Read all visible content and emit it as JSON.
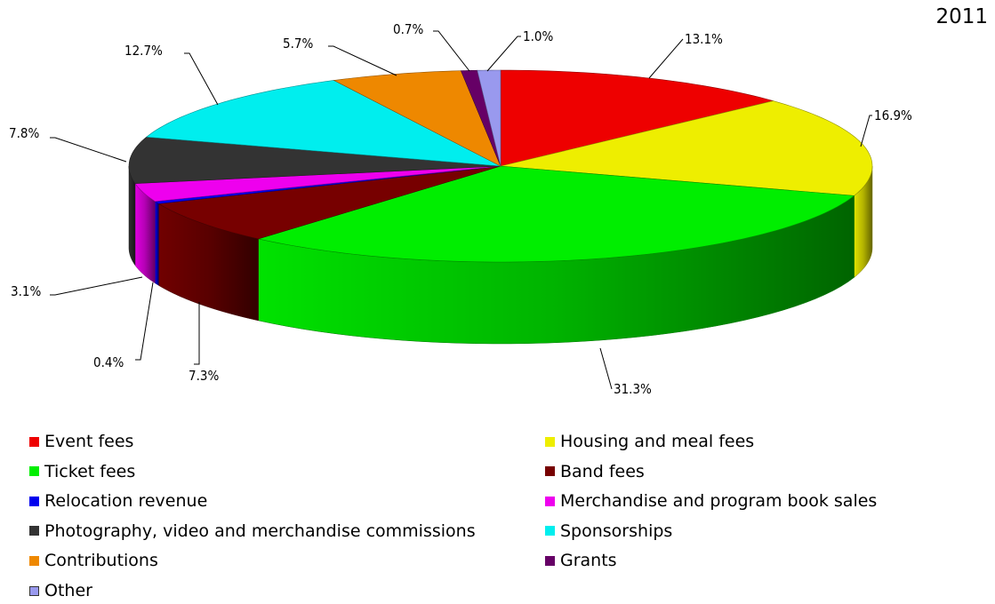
{
  "chart_data": {
    "type": "pie",
    "title": "2011",
    "slices": [
      {
        "name": "Event fees",
        "value": 13.1,
        "label": "13.1%",
        "color": "#ee0000"
      },
      {
        "name": "Housing and meal fees",
        "value": 16.9,
        "label": "16.9%",
        "color": "#eeee00"
      },
      {
        "name": "Ticket fees",
        "value": 31.3,
        "label": "31.3%",
        "color": "#00ee00"
      },
      {
        "name": "Band fees",
        "value": 7.3,
        "label": "7.3%",
        "color": "#770000"
      },
      {
        "name": "Relocation revenue",
        "value": 0.4,
        "label": "0.4%",
        "color": "#0000ee"
      },
      {
        "name": "Merchandise and program book sales",
        "value": 3.1,
        "label": "3.1%",
        "color": "#ee00ee"
      },
      {
        "name": "Photography, video and merchandise commissions",
        "value": 7.8,
        "label": "7.8%",
        "color": "#333333"
      },
      {
        "name": "Sponsorships",
        "value": 12.7,
        "label": "12.7%",
        "color": "#00eeee"
      },
      {
        "name": "Contributions",
        "value": 5.7,
        "label": "5.7%",
        "color": "#ee8800"
      },
      {
        "name": "Grants",
        "value": 0.7,
        "label": "0.7%",
        "color": "#660066"
      },
      {
        "name": "Other",
        "value": 1.0,
        "label": "1.0%",
        "color": "#9999ee"
      }
    ],
    "legend_placement": "bottom"
  },
  "legend": {
    "items": [
      "Event fees",
      "Housing and meal fees",
      "Ticket fees",
      "Band fees",
      "Relocation revenue",
      "Merchandise and program book sales",
      "Photography, video and merchandise commissions",
      "Sponsorships",
      "Contributions",
      "Grants",
      "Other"
    ]
  }
}
